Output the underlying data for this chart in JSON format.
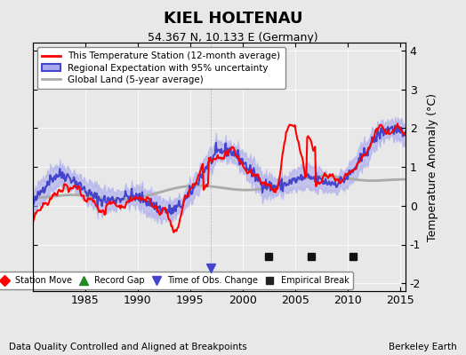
{
  "title": "KIEL HOLTENAU",
  "subtitle": "54.367 N, 10.133 E (Germany)",
  "xlabel_bottom": "Data Quality Controlled and Aligned at Breakpoints",
  "xlabel_right": "Berkeley Earth",
  "ylabel": "Temperature Anomaly (°C)",
  "xlim": [
    1980,
    2015.5
  ],
  "ylim": [
    -2.2,
    4.2
  ],
  "yticks": [
    -2,
    -1,
    0,
    1,
    2,
    3,
    4
  ],
  "xticks": [
    1985,
    1990,
    1995,
    2000,
    2005,
    2010,
    2015
  ],
  "bg_color": "#e8e8e8",
  "plot_bg_color": "#e8e8e8",
  "station_color": "#ff0000",
  "regional_color": "#4444cc",
  "regional_fill_color": "#aaaaee",
  "global_color": "#aaaaaa",
  "legend_items": [
    {
      "label": "This Temperature Station (12-month average)",
      "color": "#ff0000",
      "lw": 2
    },
    {
      "label": "Regional Expectation with 95% uncertainty",
      "color": "#4444cc",
      "lw": 2
    },
    {
      "label": "Global Land (5-year average)",
      "color": "#aaaaaa",
      "lw": 2
    }
  ],
  "bottom_legend": [
    {
      "label": "Station Move",
      "marker": "D",
      "color": "#ff0000"
    },
    {
      "label": "Record Gap",
      "marker": "^",
      "color": "#228B22"
    },
    {
      "label": "Time of Obs. Change",
      "marker": "v",
      "color": "#4444cc"
    },
    {
      "label": "Empirical Break",
      "marker": "s",
      "color": "#222222"
    }
  ],
  "obs_change_years": [
    1997.0
  ],
  "empirical_break_years": [
    2002.5,
    2006.5,
    2010.5
  ],
  "seed": 42
}
